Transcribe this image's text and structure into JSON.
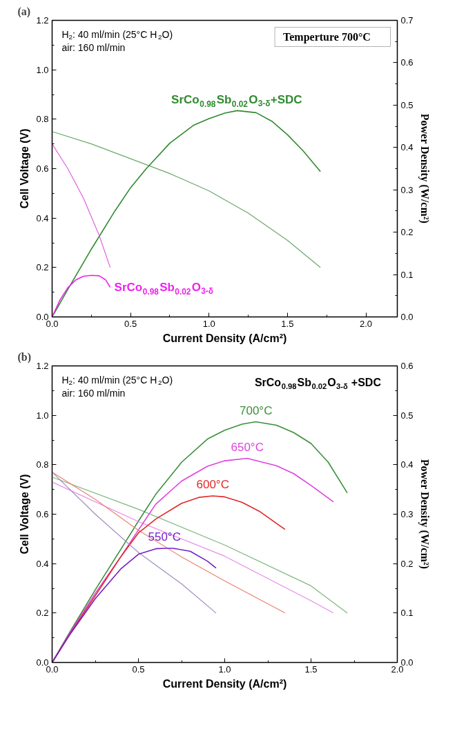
{
  "chart_data": [
    {
      "type": "line",
      "title": "(a)",
      "subtitle": "Temperture 700°C",
      "xlabel": "Current Density (A/cm²)",
      "ylabel": "Cell Voltage (V)",
      "y2label": "Power Density (W/cm²)",
      "annotations": [
        "H$_{2}$: 40 ml/min (25°C H$_{2}$O)",
        "air: 160 ml/min"
      ],
      "xlim": [
        0,
        2.2
      ],
      "xticks": [
        {
          "value": 0,
          "label": "0.0"
        },
        {
          "value": 0.25,
          "label": null
        },
        {
          "value": 0.5,
          "label": "0.5"
        },
        {
          "value": 0.75,
          "label": null
        },
        {
          "value": 1,
          "label": "1.0"
        },
        {
          "value": 1.25,
          "label": null
        },
        {
          "value": 1.5,
          "label": "1.5"
        },
        {
          "value": 1.75,
          "label": null
        },
        {
          "value": 2,
          "label": "2.0"
        }
      ],
      "ylim": [
        0,
        1.2
      ],
      "yticks": [
        {
          "value": 0,
          "label": "0.0"
        },
        {
          "value": 0.1,
          "label": null
        },
        {
          "value": 0.2,
          "label": "0.2"
        },
        {
          "value": 0.3,
          "label": null
        },
        {
          "value": 0.4,
          "label": "0.4"
        },
        {
          "value": 0.5,
          "label": null
        },
        {
          "value": 0.6,
          "label": "0.6"
        },
        {
          "value": 0.7,
          "label": null
        },
        {
          "value": 0.8,
          "label": "0.8"
        },
        {
          "value": 0.9,
          "label": null
        },
        {
          "value": 1,
          "label": "1.0"
        },
        {
          "value": 1.1,
          "label": null
        },
        {
          "value": 1.2,
          "label": "1.2"
        }
      ],
      "y2lim": [
        0,
        0.7
      ],
      "y2ticks": [
        {
          "value": 0,
          "label": "0.0"
        },
        {
          "value": 0.05,
          "label": null
        },
        {
          "value": 0.1,
          "label": "0.1"
        },
        {
          "value": 0.15,
          "label": null
        },
        {
          "value": 0.2,
          "label": "0.2"
        },
        {
          "value": 0.25,
          "label": null
        },
        {
          "value": 0.3,
          "label": "0.3"
        },
        {
          "value": 0.35,
          "label": null
        },
        {
          "value": 0.4,
          "label": "0.4"
        },
        {
          "value": 0.45,
          "label": null
        },
        {
          "value": 0.5,
          "label": "0.5"
        },
        {
          "value": 0.55,
          "label": null
        },
        {
          "value": 0.6,
          "label": "0.6"
        },
        {
          "value": 0.65,
          "label": null
        },
        {
          "value": 0.7,
          "label": "0.7"
        }
      ],
      "series": [
        {
          "color": "#6aa86a",
          "x": [
            0,
            0.25,
            0.5,
            0.75,
            1.0,
            1.25,
            1.5,
            1.71
          ],
          "values": [
            0.75,
            0.7,
            0.64,
            0.58,
            0.51,
            0.42,
            0.31,
            0.2
          ]
        },
        {
          "name": "SrCo$_{0.98}$Sb$_{0.02}$O$_{3-δ}$+SDC",
          "color": "#2f8a2f",
          "axis": "y2",
          "x": [
            0,
            0.1,
            0.25,
            0.4,
            0.5,
            0.6,
            0.75,
            0.9,
            1.0,
            1.1,
            1.18,
            1.3,
            1.4,
            1.5,
            1.6,
            1.71
          ],
          "values": [
            0,
            0.065,
            0.16,
            0.25,
            0.305,
            0.35,
            0.41,
            0.452,
            0.468,
            0.481,
            0.487,
            0.482,
            0.462,
            0.43,
            0.392,
            0.343
          ]
        },
        {
          "color": "#e060e0",
          "x": [
            0,
            0.1,
            0.2,
            0.3,
            0.37
          ],
          "values": [
            0.7,
            0.6,
            0.48,
            0.33,
            0.2
          ]
        },
        {
          "name": "SrCo$_{0.98}$Sb$_{0.02}$O$_{3-δ}$",
          "color": "#ee22ee",
          "axis": "y2",
          "x": [
            0,
            0.05,
            0.1,
            0.15,
            0.2,
            0.25,
            0.3,
            0.34,
            0.37
          ],
          "values": [
            0,
            0.04,
            0.069,
            0.087,
            0.096,
            0.098,
            0.097,
            0.088,
            0.07
          ]
        }
      ]
    },
    {
      "type": "line",
      "title": "(b)",
      "subtitle": "SrCo$_{0.98}$Sb$_{0.02}$O$_{3-δ}$ +SDC",
      "xlabel": "Current Density (A/cm²)",
      "ylabel": "Cell Voltage (V)",
      "y2label": "Power Density (W/cm²)",
      "annotations": [
        "H$_{2}$: 40 ml/min (25°C H$_{2}$O)",
        "air: 160 ml/min"
      ],
      "xlim": [
        0,
        2.0
      ],
      "xticks": [
        {
          "value": 0,
          "label": "0.0"
        },
        {
          "value": 0.25,
          "label": null
        },
        {
          "value": 0.5,
          "label": "0.5"
        },
        {
          "value": 0.75,
          "label": null
        },
        {
          "value": 1,
          "label": "1.0"
        },
        {
          "value": 1.25,
          "label": null
        },
        {
          "value": 1.5,
          "label": "1.5"
        },
        {
          "value": 1.75,
          "label": null
        },
        {
          "value": 2,
          "label": "2.0"
        }
      ],
      "ylim": [
        0,
        1.2
      ],
      "yticks": [
        {
          "value": 0,
          "label": "0.0"
        },
        {
          "value": 0.1,
          "label": null
        },
        {
          "value": 0.2,
          "label": "0.2"
        },
        {
          "value": 0.3,
          "label": null
        },
        {
          "value": 0.4,
          "label": "0.4"
        },
        {
          "value": 0.5,
          "label": null
        },
        {
          "value": 0.6,
          "label": "0.6"
        },
        {
          "value": 0.7,
          "label": null
        },
        {
          "value": 0.8,
          "label": "0.8"
        },
        {
          "value": 0.9,
          "label": null
        },
        {
          "value": 1,
          "label": "1.0"
        },
        {
          "value": 1.1,
          "label": null
        },
        {
          "value": 1.2,
          "label": "1.2"
        }
      ],
      "y2lim": [
        0,
        0.6
      ],
      "y2ticks": [
        {
          "value": 0,
          "label": "0.0"
        },
        {
          "value": 0.05,
          "label": null
        },
        {
          "value": 0.1,
          "label": "0.1"
        },
        {
          "value": 0.15,
          "label": null
        },
        {
          "value": 0.2,
          "label": "0.2"
        },
        {
          "value": 0.25,
          "label": null
        },
        {
          "value": 0.3,
          "label": "0.3"
        },
        {
          "value": 0.35,
          "label": null
        },
        {
          "value": 0.4,
          "label": "0.4"
        },
        {
          "value": 0.45,
          "label": null
        },
        {
          "value": 0.5,
          "label": "0.5"
        },
        {
          "value": 0.55,
          "label": null
        },
        {
          "value": 0.6,
          "label": "0.6"
        }
      ],
      "series": [
        {
          "color": "#7fb57f",
          "x": [
            0,
            0.5,
            1.0,
            1.5,
            1.71
          ],
          "values": [
            0.75,
            0.62,
            0.475,
            0.31,
            0.2
          ]
        },
        {
          "name": "700°C",
          "color": "#3a8f3a",
          "axis": "y2",
          "x": [
            0,
            0.1,
            0.25,
            0.4,
            0.5,
            0.6,
            0.75,
            0.9,
            1.0,
            1.1,
            1.18,
            1.3,
            1.4,
            1.5,
            1.6,
            1.71
          ],
          "values": [
            0,
            0.06,
            0.147,
            0.23,
            0.286,
            0.34,
            0.405,
            0.452,
            0.47,
            0.482,
            0.487,
            0.48,
            0.465,
            0.443,
            0.405,
            0.343
          ]
        },
        {
          "color": "#e88ae8",
          "x": [
            0,
            0.5,
            1.0,
            1.5,
            1.63
          ],
          "values": [
            0.73,
            0.57,
            0.43,
            0.25,
            0.2
          ]
        },
        {
          "name": "650°C",
          "color": "#e040e0",
          "axis": "y2",
          "x": [
            0,
            0.1,
            0.25,
            0.4,
            0.5,
            0.6,
            0.75,
            0.9,
            1.0,
            1.13,
            1.3,
            1.4,
            1.5,
            1.63
          ],
          "values": [
            0,
            0.058,
            0.14,
            0.215,
            0.268,
            0.32,
            0.367,
            0.397,
            0.408,
            0.413,
            0.398,
            0.382,
            0.358,
            0.325
          ]
        },
        {
          "color": "#ec8070",
          "x": [
            0,
            0.25,
            0.5,
            0.75,
            1.0,
            1.35
          ],
          "values": [
            0.77,
            0.66,
            0.535,
            0.427,
            0.33,
            0.2
          ]
        },
        {
          "name": "600°C",
          "color": "#e02828",
          "axis": "y2",
          "x": [
            0,
            0.1,
            0.25,
            0.4,
            0.5,
            0.6,
            0.75,
            0.85,
            0.93,
            1.0,
            1.1,
            1.2,
            1.35
          ],
          "values": [
            0,
            0.056,
            0.135,
            0.215,
            0.262,
            0.29,
            0.322,
            0.334,
            0.337,
            0.335,
            0.324,
            0.306,
            0.269
          ]
        },
        {
          "color": "#a08cc0",
          "x": [
            0,
            0.25,
            0.5,
            0.75,
            0.95
          ],
          "values": [
            0.77,
            0.6,
            0.445,
            0.318,
            0.2
          ]
        },
        {
          "name": "550°C",
          "color": "#7020c8",
          "axis": "y2",
          "x": [
            0,
            0.1,
            0.25,
            0.4,
            0.5,
            0.6,
            0.65,
            0.7,
            0.8,
            0.9,
            0.95
          ],
          "values": [
            0,
            0.055,
            0.129,
            0.19,
            0.219,
            0.23,
            0.231,
            0.231,
            0.225,
            0.205,
            0.191
          ]
        }
      ]
    }
  ]
}
